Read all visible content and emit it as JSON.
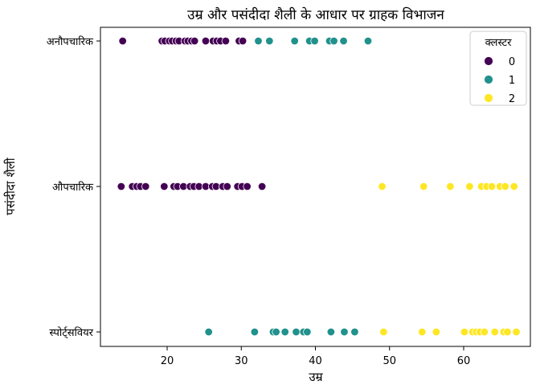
{
  "chart_data": {
    "type": "scatter",
    "title": "उम्र और पसंदीदा शैली के आधार पर ग्राहक विभाजन",
    "xlabel": "उम्र",
    "ylabel": "पसंदीदा शैली",
    "xlim": [
      11,
      69
    ],
    "x_ticks": [
      20,
      30,
      40,
      50,
      60
    ],
    "categories": [
      "अनौपचारिक",
      "औपचारिक",
      "स्पोर्ट्सवियर"
    ],
    "grid": false,
    "legend": {
      "title": "क्लस्टर",
      "placement": "top-right"
    },
    "series": [
      {
        "name": "0",
        "color": "#440154",
        "points": [
          {
            "x": 14,
            "y": "अनौपचारिक"
          },
          {
            "x": 19.3,
            "y": "अनौपचारिक"
          },
          {
            "x": 19.7,
            "y": "अनौपचारिक"
          },
          {
            "x": 20.3,
            "y": "अनौपचारिक"
          },
          {
            "x": 20.7,
            "y": "अनौपचारिक"
          },
          {
            "x": 21.2,
            "y": "अनौपचारिक"
          },
          {
            "x": 21.6,
            "y": "अनौपचारिक"
          },
          {
            "x": 22.4,
            "y": "अनौपचारिक"
          },
          {
            "x": 22.8,
            "y": "अनौपचारिक"
          },
          {
            "x": 23.3,
            "y": "अनौपचारिक"
          },
          {
            "x": 23.7,
            "y": "अनौपचारिक"
          },
          {
            "x": 25.2,
            "y": "अनौपचारिक"
          },
          {
            "x": 26.2,
            "y": "अनौपचारिक"
          },
          {
            "x": 26.7,
            "y": "अनौपचारिक"
          },
          {
            "x": 27.2,
            "y": "अनौपचारिक"
          },
          {
            "x": 27.9,
            "y": "अनौपचारिक"
          },
          {
            "x": 29.7,
            "y": "अनौपचारिक"
          },
          {
            "x": 30.2,
            "y": "अनौपचारिक"
          },
          {
            "x": 13.8,
            "y": "औपचारिक"
          },
          {
            "x": 15.3,
            "y": "औपचारिक"
          },
          {
            "x": 15.9,
            "y": "औपचारिक"
          },
          {
            "x": 16.4,
            "y": "औपचारिक"
          },
          {
            "x": 17.1,
            "y": "औपचारिक"
          },
          {
            "x": 19.6,
            "y": "औपचारिक"
          },
          {
            "x": 20.9,
            "y": "औपचारिक"
          },
          {
            "x": 21.4,
            "y": "औपचारिक"
          },
          {
            "x": 22.2,
            "y": "औपचारिक"
          },
          {
            "x": 23.1,
            "y": "औपचारिक"
          },
          {
            "x": 23.6,
            "y": "औपचारिक"
          },
          {
            "x": 24.3,
            "y": "औपचारिक"
          },
          {
            "x": 25.2,
            "y": "औपचारिक"
          },
          {
            "x": 26.1,
            "y": "औपचारिक"
          },
          {
            "x": 26.6,
            "y": "औपचारिक"
          },
          {
            "x": 27.5,
            "y": "औपचारिक"
          },
          {
            "x": 28.1,
            "y": "औपचारिक"
          },
          {
            "x": 29.5,
            "y": "औपचारिक"
          },
          {
            "x": 30.1,
            "y": "औपचारिक"
          },
          {
            "x": 30.8,
            "y": "औपचारिक"
          },
          {
            "x": 32.8,
            "y": "औपचारिक"
          }
        ]
      },
      {
        "name": "1",
        "color": "#21918c",
        "points": [
          {
            "x": 32.3,
            "y": "अनौपचारिक"
          },
          {
            "x": 33.8,
            "y": "अनौपचारिक"
          },
          {
            "x": 37.2,
            "y": "अनौपचारिक"
          },
          {
            "x": 39.2,
            "y": "अनौपचारिक"
          },
          {
            "x": 39.9,
            "y": "अनौपचारिक"
          },
          {
            "x": 41.9,
            "y": "अनौपचारिक"
          },
          {
            "x": 42.5,
            "y": "अनौपचारिक"
          },
          {
            "x": 43.8,
            "y": "अनौपचारिक"
          },
          {
            "x": 47.1,
            "y": "अनौपचारिक"
          },
          {
            "x": 25.6,
            "y": "स्पोर्ट्सवियर"
          },
          {
            "x": 31.8,
            "y": "स्पोर्ट्सवियर"
          },
          {
            "x": 34.3,
            "y": "स्पोर्ट्सवियर"
          },
          {
            "x": 34.7,
            "y": "स्पोर्ट्सवियर"
          },
          {
            "x": 35.9,
            "y": "स्पोर्ट्सवियर"
          },
          {
            "x": 37.4,
            "y": "स्पोर्ट्सवियर"
          },
          {
            "x": 38.4,
            "y": "स्पोर्ट्सवियर"
          },
          {
            "x": 38.9,
            "y": "स्पोर्ट्सवियर"
          },
          {
            "x": 42.1,
            "y": "स्पोर्ट्सवियर"
          },
          {
            "x": 43.9,
            "y": "स्पोर्ट्सवियर"
          },
          {
            "x": 45.3,
            "y": "स्पोर्ट्सवियर"
          }
        ]
      },
      {
        "name": "2",
        "color": "#fde725",
        "points": [
          {
            "x": 49.0,
            "y": "औपचारिक"
          },
          {
            "x": 54.6,
            "y": "औपचारिक"
          },
          {
            "x": 58.2,
            "y": "औपचारिक"
          },
          {
            "x": 60.8,
            "y": "औपचारिक"
          },
          {
            "x": 62.4,
            "y": "औपचारिक"
          },
          {
            "x": 63.1,
            "y": "औपचारिक"
          },
          {
            "x": 63.8,
            "y": "औपचारिक"
          },
          {
            "x": 64.9,
            "y": "औपचारिक"
          },
          {
            "x": 65.6,
            "y": "औपचारिक"
          },
          {
            "x": 66.8,
            "y": "औपचारिक"
          },
          {
            "x": 49.2,
            "y": "स्पोर्ट्सवियर"
          },
          {
            "x": 54.4,
            "y": "स्पोर्ट्सवियर"
          },
          {
            "x": 56.3,
            "y": "स्पोर्ट्सवियर"
          },
          {
            "x": 60.1,
            "y": "स्पोर्ट्सवियर"
          },
          {
            "x": 61.2,
            "y": "स्पोर्ट्सवियर"
          },
          {
            "x": 61.7,
            "y": "स्पोर्ट्सवियर"
          },
          {
            "x": 62.2,
            "y": "स्पोर्ट्सवियर"
          },
          {
            "x": 62.8,
            "y": "स्पोर्ट्सवियर"
          },
          {
            "x": 64.2,
            "y": "स्पोर्ट्सवियर"
          },
          {
            "x": 65.4,
            "y": "स्पोर्ट्सवियर"
          },
          {
            "x": 65.9,
            "y": "स्पोर्ट्सवियर"
          },
          {
            "x": 67.1,
            "y": "स्पोर्ट्सवियर"
          }
        ]
      }
    ]
  }
}
